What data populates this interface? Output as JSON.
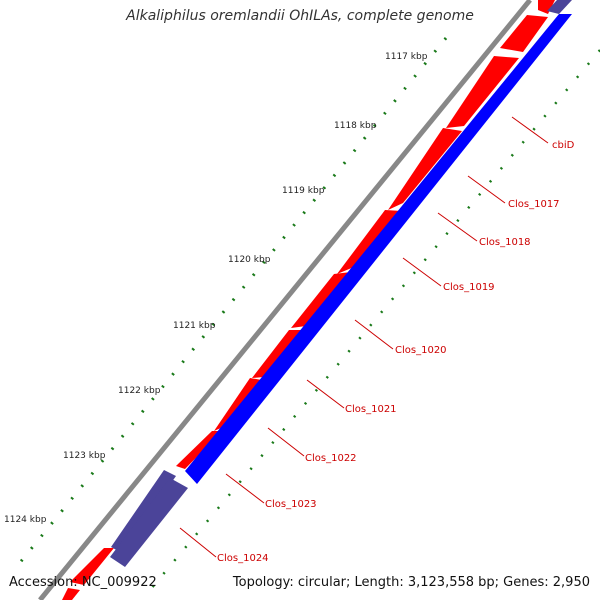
{
  "title": "Alkaliphilus oremlandii OhILAs, complete genome",
  "footer": {
    "accession": "Accession: NC_009922",
    "topology": "Topology: circular; Length: 3,123,558 bp; Genes: 2,950"
  },
  "colors": {
    "backbone": "#888888",
    "forward_gene": "#ff0000",
    "reverse_gene": "#0000ff",
    "other_feature": "#4b4499",
    "label": "#cc0000",
    "ticks": "#1a7a1a"
  },
  "kbp_ticks": [
    "1117 kbp",
    "1118 kbp",
    "1119 kbp",
    "1120 kbp",
    "1121 kbp",
    "1122 kbp",
    "1123 kbp",
    "1124 kbp"
  ],
  "gene_labels": [
    "cbiD",
    "Clos_1017",
    "Clos_1018",
    "Clos_1019",
    "Clos_1020",
    "Clos_1021",
    "Clos_1022",
    "Clos_1023",
    "Clos_1024"
  ]
}
